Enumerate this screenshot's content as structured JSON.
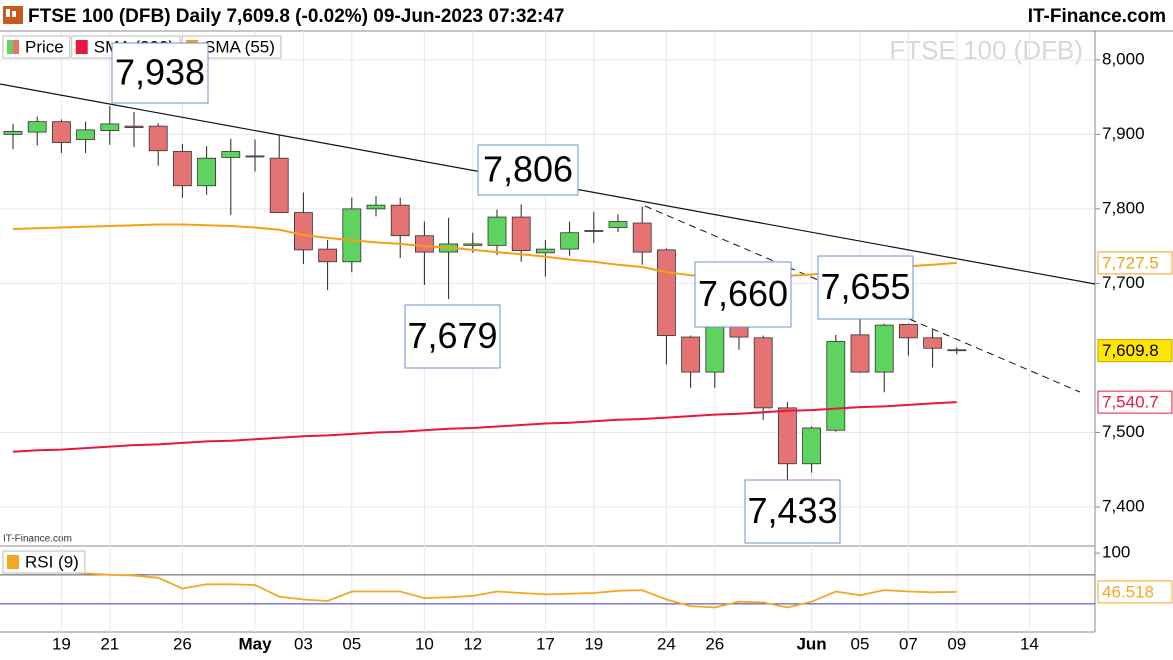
{
  "chart_data": [
    {
      "type": "candlestick",
      "title": "FTSE 100 (DFB) Daily 7,609.8 (-0.02%) 09-Jun-2023 07:32:47",
      "source": "IT-Finance.com",
      "watermark": "FTSE 100 (DFB)",
      "footer": "IT-Finance.com",
      "categories": [
        null,
        null,
        "19",
        null,
        "21",
        null,
        null,
        "26",
        null,
        null,
        "May",
        null,
        "03",
        null,
        "05",
        null,
        null,
        "10",
        null,
        "12",
        null,
        null,
        "17",
        null,
        "19",
        null,
        null,
        "24",
        null,
        "26",
        null,
        null,
        null,
        "Jun",
        null,
        "05",
        null,
        "07",
        null,
        "09",
        null,
        null,
        "14"
      ],
      "ohlc": {
        "name": "Price",
        "up_color": "#5fd35f",
        "down_color": "#e57373",
        "open": [
          7900,
          7903,
          7917,
          7893,
          7905,
          7911,
          7911,
          7877,
          7831,
          7869,
          7871,
          7868,
          7795,
          7746,
          7729,
          7800,
          7805,
          7764,
          7742,
          7751,
          7751,
          7789,
          7741,
          7746,
          7770,
          7775,
          7781,
          7745,
          7628,
          7581,
          7653,
          7627,
          7533,
          7458,
          7503,
          7631,
          7581,
          7645,
          7627,
          7611,
          null,
          null,
          null
        ],
        "high": [
          7914,
          7924,
          7920,
          7917,
          7938,
          7930,
          7915,
          7887,
          7884,
          7894,
          7893,
          7899,
          7822,
          7758,
          7815,
          7817,
          7815,
          7783,
          7788,
          7768,
          7799,
          7806,
          7758,
          7783,
          7796,
          7793,
          7803,
          7747,
          7630,
          7655,
          7660,
          7630,
          7541,
          7508,
          7631,
          7655,
          7646,
          7646,
          7638,
          7614,
          null,
          null,
          null
        ],
        "low": [
          7880,
          7885,
          7875,
          7875,
          7886,
          7883,
          7858,
          7815,
          7819,
          7792,
          7850,
          7795,
          7726,
          7691,
          7715,
          7790,
          7734,
          7698,
          7679,
          7741,
          7738,
          7729,
          7709,
          7737,
          7754,
          7769,
          7725,
          7591,
          7560,
          7560,
          7611,
          7517,
          7433,
          7446,
          7501,
          7580,
          7554,
          7603,
          7587,
          7605,
          null,
          null,
          null
        ],
        "close": [
          7904,
          7917,
          7889,
          7906,
          7914,
          7909,
          7878,
          7831,
          7868,
          7877,
          7870,
          7795,
          7745,
          7729,
          7800,
          7805,
          7764,
          7742,
          7753,
          7753,
          7789,
          7744,
          7746,
          7768,
          7771,
          7783,
          7742,
          7630,
          7581,
          7646,
          7628,
          7533,
          7458,
          7506,
          7622,
          7581,
          7644,
          7627,
          7613,
          7609.8,
          null,
          null,
          null
        ],
        "close_labels": [
          null,
          null,
          null,
          null,
          null,
          null,
          null,
          null,
          null,
          null,
          null,
          null,
          null,
          null,
          null,
          null,
          null,
          null,
          null,
          null,
          null,
          null,
          null,
          null,
          null,
          null,
          null,
          null,
          null,
          null,
          null,
          null,
          null,
          null,
          null,
          null,
          null,
          null,
          null,
          "7,609.8",
          null,
          null,
          null
        ]
      },
      "series": [
        {
          "name": "SMA (200)",
          "color": "#e8173f",
          "values": [
            7474,
            7476,
            7477,
            7479,
            7481,
            7483,
            7484,
            7486,
            7488,
            7489,
            7491,
            7493,
            7495,
            7496,
            7498,
            7500,
            7501,
            7503,
            7505,
            7506,
            7508,
            7510,
            7512,
            7513,
            7515,
            7517,
            7518,
            7520,
            7522,
            7524,
            7525,
            7527,
            7529,
            7530,
            7532,
            7534,
            7535,
            7537,
            7539,
            7540.7,
            null,
            null,
            null
          ],
          "value_labels": [
            null,
            null,
            null,
            null,
            null,
            null,
            null,
            null,
            null,
            null,
            null,
            null,
            null,
            null,
            null,
            null,
            null,
            null,
            null,
            null,
            null,
            null,
            null,
            null,
            null,
            null,
            null,
            null,
            null,
            null,
            null,
            null,
            null,
            null,
            null,
            null,
            null,
            null,
            null,
            "7,540.7",
            null,
            null,
            null
          ]
        },
        {
          "name": "SMA (55)",
          "color": "#f5a014",
          "values": [
            7773,
            7774,
            7775,
            7776,
            7777,
            7778,
            7779,
            7779,
            7778,
            7777,
            7775,
            7772,
            7765,
            7761,
            7758,
            7755,
            7753,
            7750,
            7748,
            7745,
            7742,
            7739,
            7736,
            7732,
            7729,
            7725,
            7722,
            7715,
            7711,
            7710,
            7710,
            7710,
            7710,
            7712,
            7715,
            7718,
            7721,
            7723,
            7725,
            7727.5,
            null,
            null,
            null
          ],
          "value_labels": [
            null,
            null,
            null,
            null,
            null,
            null,
            null,
            null,
            null,
            null,
            null,
            null,
            null,
            null,
            null,
            null,
            null,
            null,
            null,
            null,
            null,
            null,
            null,
            null,
            null,
            null,
            null,
            null,
            null,
            null,
            null,
            null,
            null,
            null,
            null,
            null,
            null,
            null,
            null,
            "7,727.5",
            null,
            null,
            null
          ]
        }
      ],
      "annotations": [
        "7,938",
        "7,806",
        "7,679",
        "7,660",
        "7,655",
        "7,433"
      ],
      "ylim": [
        7349,
        8040
      ],
      "yticks": [
        {
          "value": 8000,
          "label": "8,000"
        },
        {
          "value": 7900,
          "label": "7,900"
        },
        {
          "value": 7800,
          "label": "7,800"
        },
        {
          "value": 7700,
          "label": "7,700"
        },
        {
          "value": 7500,
          "label": "7,500"
        },
        {
          "value": 7400,
          "label": "7,400"
        }
      ],
      "grid": true
    },
    {
      "type": "line",
      "series": [
        {
          "name": "RSI (9)",
          "color": "#f5a623",
          "values": [
            76,
            76,
            75,
            72,
            70,
            69,
            66,
            51,
            57,
            57,
            56,
            40,
            36,
            34,
            47,
            47,
            47,
            38,
            39,
            41,
            47,
            45,
            43,
            44,
            45,
            48,
            49,
            36,
            27,
            25,
            33,
            32,
            25,
            33,
            47,
            42,
            49,
            47,
            46,
            46.518,
            null,
            null,
            null
          ],
          "value_labels": [
            null,
            null,
            null,
            null,
            null,
            null,
            null,
            null,
            null,
            null,
            null,
            null,
            null,
            null,
            null,
            null,
            null,
            null,
            null,
            null,
            null,
            null,
            null,
            null,
            null,
            null,
            null,
            null,
            null,
            null,
            null,
            null,
            null,
            null,
            null,
            null,
            null,
            null,
            null,
            "46.518",
            null,
            null,
            null
          ]
        }
      ],
      "levels": [
        70,
        30
      ],
      "ylim": [
        -6,
        107
      ],
      "yticks": [
        100
      ]
    }
  ]
}
